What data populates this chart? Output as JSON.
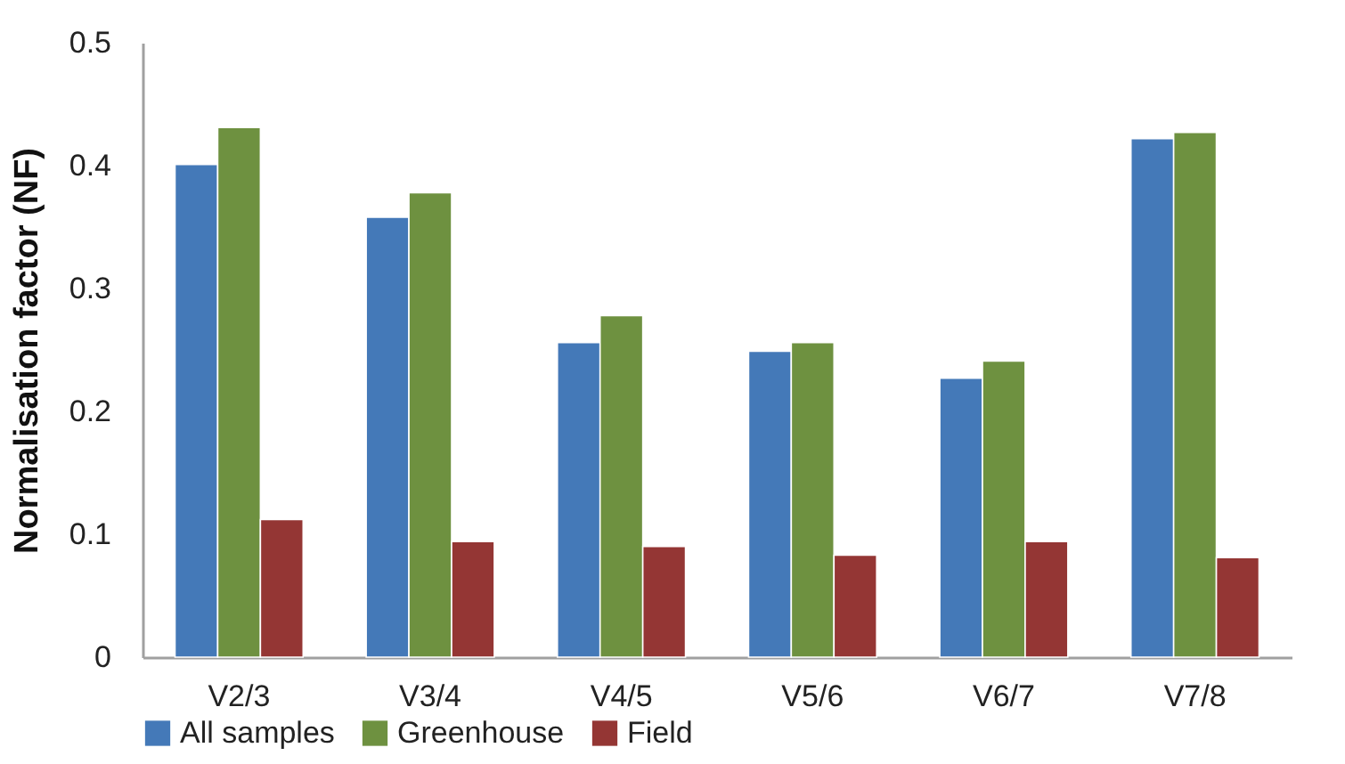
{
  "chart_data": {
    "type": "bar",
    "ylabel": "Normalisation factor (NF)",
    "categories": [
      "V2/3",
      "V3/4",
      "V4/5",
      "V5/6",
      "V6/7",
      "V7/8"
    ],
    "series": [
      {
        "name": "All samples",
        "color": "#4479b8",
        "values": [
          0.401,
          0.358,
          0.256,
          0.249,
          0.227,
          0.422
        ]
      },
      {
        "name": "Greenhouse",
        "color": "#6e9140",
        "values": [
          0.431,
          0.378,
          0.278,
          0.256,
          0.241,
          0.427
        ]
      },
      {
        "name": "Field",
        "color": "#943634",
        "values": [
          0.112,
          0.094,
          0.09,
          0.083,
          0.094,
          0.081
        ]
      }
    ],
    "ylim": [
      0,
      0.5
    ],
    "yticks": [
      0,
      0.1,
      0.2,
      0.3,
      0.4,
      0.5
    ],
    "grid": false,
    "legend": "bottom"
  }
}
